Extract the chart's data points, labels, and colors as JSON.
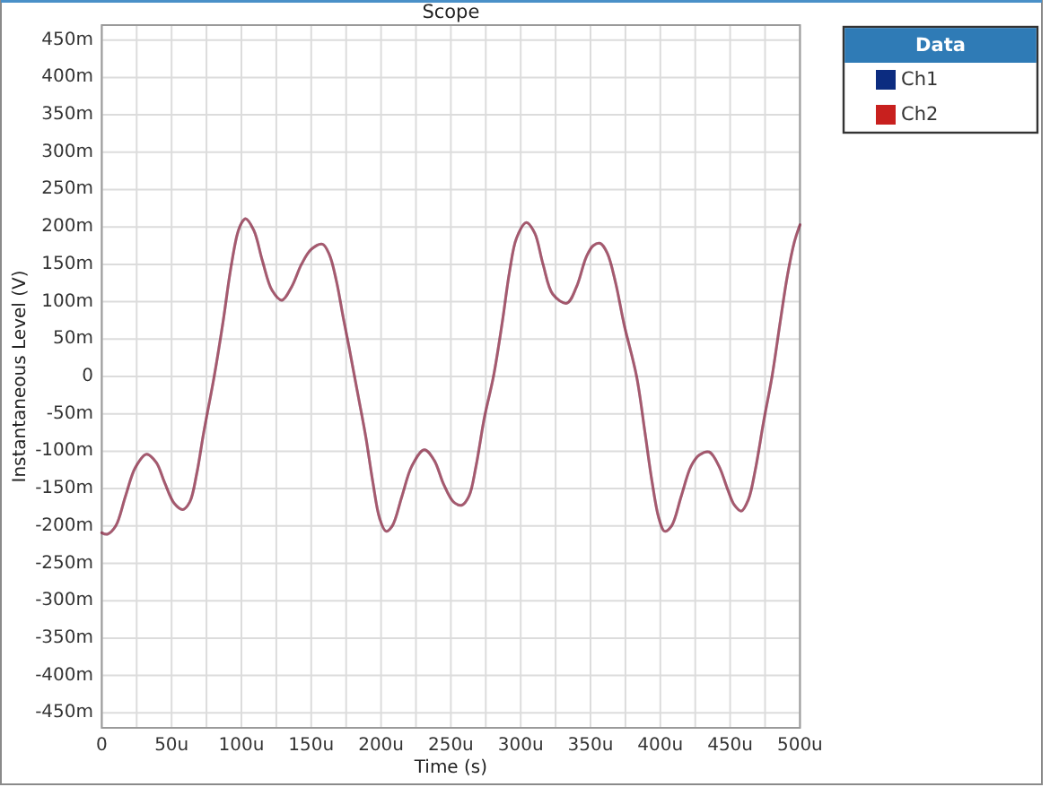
{
  "chart_data": {
    "type": "line",
    "title": "Scope",
    "xlabel": "Time (s)",
    "ylabel": "Instantaneous Level (V)",
    "legend_title": "Data",
    "legend": "right",
    "grid": true,
    "xlim": [
      0,
      500
    ],
    "ylim": [
      -470,
      470
    ],
    "xticks": [
      0,
      {
        "value": 25,
        "label": null
      },
      {
        "value": 50,
        "label": "50u"
      },
      {
        "value": 75,
        "label": null
      },
      {
        "value": 100,
        "label": "100u"
      },
      {
        "value": 125,
        "label": null
      },
      {
        "value": 150,
        "label": "150u"
      },
      {
        "value": 175,
        "label": null
      },
      {
        "value": 200,
        "label": "200u"
      },
      {
        "value": 225,
        "label": null
      },
      {
        "value": 250,
        "label": "250u"
      },
      {
        "value": 275,
        "label": null
      },
      {
        "value": 300,
        "label": "300u"
      },
      {
        "value": 325,
        "label": null
      },
      {
        "value": 350,
        "label": "350u"
      },
      {
        "value": 375,
        "label": null
      },
      {
        "value": 400,
        "label": "400u"
      },
      {
        "value": 425,
        "label": null
      },
      {
        "value": 450,
        "label": "450u"
      },
      {
        "value": 475,
        "label": null
      },
      {
        "value": 500,
        "label": "500u"
      }
    ],
    "yticks": [
      {
        "value": -450,
        "label": "-450m"
      },
      {
        "value": -400,
        "label": "-400m"
      },
      {
        "value": -350,
        "label": "-350m"
      },
      {
        "value": -300,
        "label": "-300m"
      },
      {
        "value": -250,
        "label": "-250m"
      },
      {
        "value": -200,
        "label": "-200m"
      },
      {
        "value": -150,
        "label": "-150m"
      },
      {
        "value": -100,
        "label": "-100m"
      },
      {
        "value": -50,
        "label": "-50m"
      },
      0,
      {
        "value": 50,
        "label": "50m"
      },
      {
        "value": 100,
        "label": "100m"
      },
      {
        "value": 150,
        "label": "150m"
      },
      {
        "value": 200,
        "label": "200m"
      },
      {
        "value": 250,
        "label": "250m"
      },
      {
        "value": 300,
        "label": "300m"
      },
      {
        "value": 350,
        "label": "350m"
      },
      {
        "value": 400,
        "label": "400m"
      },
      {
        "value": 450,
        "label": "450m"
      }
    ],
    "x": [
      0,
      4,
      10,
      17,
      24,
      32,
      39,
      45,
      52,
      58,
      63,
      68,
      73,
      80.5,
      87,
      92,
      97,
      100,
      103,
      109,
      115,
      122,
      129,
      136,
      143,
      150,
      158,
      163,
      168,
      173,
      177,
      182,
      189,
      194,
      199,
      203.5,
      208,
      215,
      222,
      231,
      238,
      245,
      252,
      258,
      263,
      268,
      274,
      280.5,
      287,
      292,
      297,
      304,
      310,
      316,
      323,
      333,
      340,
      347,
      352,
      357,
      362,
      368,
      374,
      383,
      389,
      394,
      399,
      403,
      408,
      415,
      422,
      428,
      435,
      442,
      448,
      453,
      458,
      463,
      468,
      474,
      480,
      486,
      491,
      496,
      500
    ],
    "series": [
      {
        "name": "Ch1",
        "color": "#0c2c80",
        "values": [
          -209,
          -211,
          -200,
          -160,
          -122,
          -104,
          -115,
          -142,
          -170,
          -178,
          -168,
          -130,
          -75,
          0,
          75,
          140,
          190,
          205,
          211,
          195,
          155,
          115,
          102,
          120,
          150,
          170,
          177,
          163,
          128,
          78,
          40,
          -10,
          -80,
          -140,
          -190,
          -207,
          -200,
          -160,
          -120,
          -98,
          -112,
          -145,
          -168,
          -172,
          -160,
          -120,
          -55,
          0,
          75,
          140,
          185,
          206,
          192,
          150,
          110,
          98,
          120,
          160,
          175,
          178,
          165,
          125,
          70,
          0,
          -75,
          -140,
          -190,
          -207,
          -200,
          -160,
          -120,
          -105,
          -101,
          -120,
          -150,
          -172,
          -180,
          -165,
          -125,
          -60,
          0,
          75,
          135,
          180,
          203
        ]
      },
      {
        "name": "Ch2",
        "color": "#c8201e",
        "values": [
          -209,
          -211,
          -200,
          -160,
          -122,
          -104,
          -115,
          -142,
          -170,
          -178,
          -168,
          -130,
          -75,
          0,
          75,
          140,
          190,
          205,
          211,
          195,
          155,
          115,
          102,
          120,
          150,
          170,
          177,
          163,
          128,
          78,
          40,
          -10,
          -80,
          -140,
          -190,
          -207,
          -200,
          -160,
          -120,
          -98,
          -112,
          -145,
          -168,
          -172,
          -160,
          -120,
          -55,
          0,
          75,
          140,
          185,
          206,
          192,
          150,
          110,
          98,
          120,
          160,
          175,
          178,
          165,
          125,
          70,
          0,
          -75,
          -140,
          -190,
          -207,
          -200,
          -160,
          -120,
          -105,
          -101,
          -120,
          -150,
          -172,
          -180,
          -165,
          -125,
          -60,
          0,
          75,
          135,
          180,
          203
        ]
      }
    ]
  }
}
